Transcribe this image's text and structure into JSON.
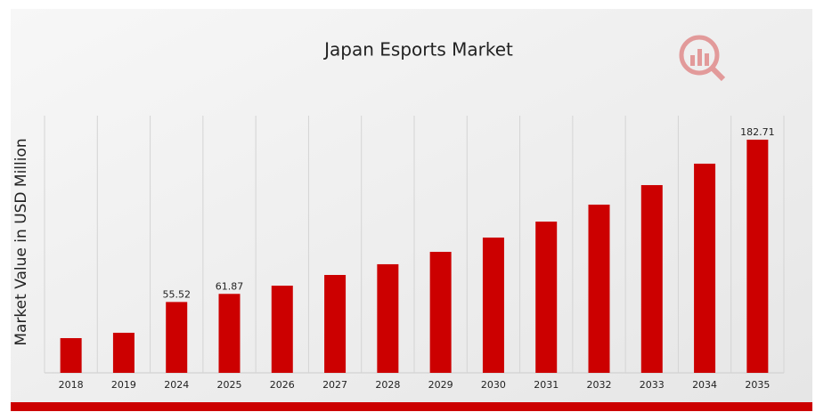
{
  "chart_data": {
    "type": "bar",
    "title": "Japan Esports Market",
    "y_label": "Market Value in USD Million",
    "categories": [
      "2018",
      "2019",
      "2024",
      "2025",
      "2026",
      "2027",
      "2028",
      "2029",
      "2030",
      "2031",
      "2032",
      "2033",
      "2034",
      "2035"
    ],
    "values": [
      27.2,
      31.4,
      55.52,
      61.87,
      68.3,
      76.7,
      85.1,
      94.8,
      106,
      118.5,
      131.8,
      147.1,
      163.9,
      182.71
    ],
    "value_labels": [
      null,
      null,
      "55.52",
      "61.87",
      null,
      null,
      null,
      null,
      null,
      null,
      null,
      null,
      null,
      "182.71"
    ],
    "color": "#cc0000",
    "ylim": [
      0,
      201.5
    ],
    "grid": true
  }
}
